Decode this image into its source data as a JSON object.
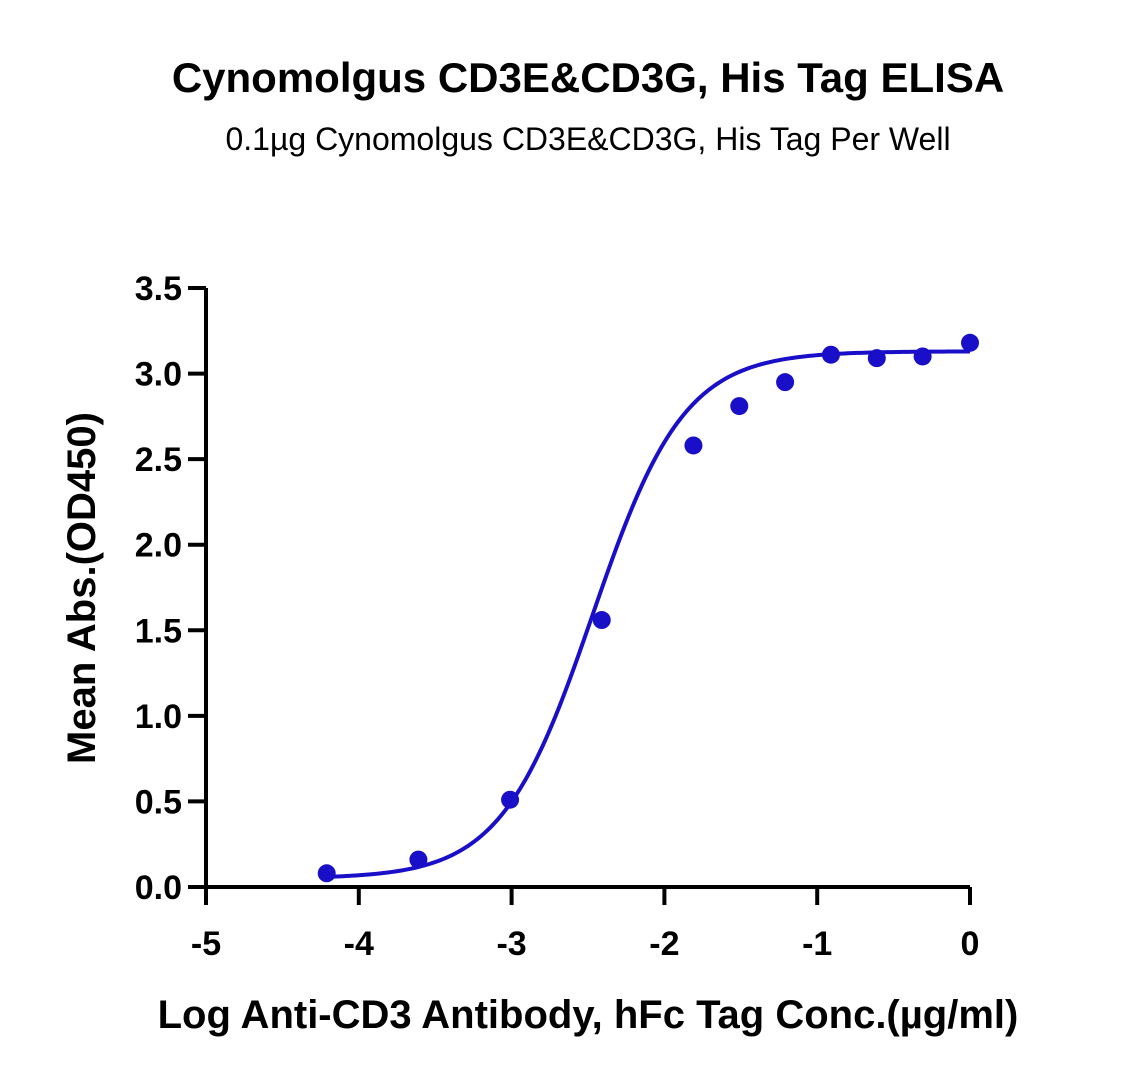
{
  "chart_data": {
    "type": "scatter",
    "title": "Cynomolgus CD3E&CD3G, His Tag ELISA",
    "subtitle": "0.1µg Cynomolgus CD3E&CD3G, His Tag Per Well",
    "xlabel": "Log Anti-CD3 Antibody, hFc Tag Conc.(µg/ml)",
    "ylabel": "Mean Abs.(OD450)",
    "xlim": [
      -5,
      0
    ],
    "ylim": [
      0,
      3.5
    ],
    "x_ticks": [
      -5,
      -4,
      -3,
      -2,
      -1,
      0
    ],
    "x_tick_labels": [
      "-5",
      "-4",
      "-3",
      "-2",
      "-1",
      "0"
    ],
    "y_ticks": [
      0,
      0.5,
      1,
      1.5,
      2,
      2.5,
      3,
      3.5
    ],
    "y_tick_labels": [
      "0.0",
      "0.5",
      "1.0",
      "1.5",
      "2.0",
      "2.5",
      "3.0",
      "3.5"
    ],
    "grid": false,
    "series": [
      {
        "color": "#1a0fc8",
        "x": [
          -4.21,
          -3.61,
          -3.01,
          -2.41,
          -1.81,
          -1.51,
          -1.21,
          -0.91,
          -0.61,
          -0.31,
          0.0
        ],
        "y": [
          0.08,
          0.16,
          0.51,
          1.56,
          2.58,
          2.81,
          2.95,
          3.11,
          3.09,
          3.1,
          3.18
        ]
      }
    ],
    "fit_curve": {
      "model": "4PL",
      "bottom": 0.05,
      "top": 3.13,
      "logEC50": -2.47,
      "hill": 1.45,
      "x_range": [
        -4.21,
        0.0
      ],
      "color": "#1a0fc8"
    }
  }
}
